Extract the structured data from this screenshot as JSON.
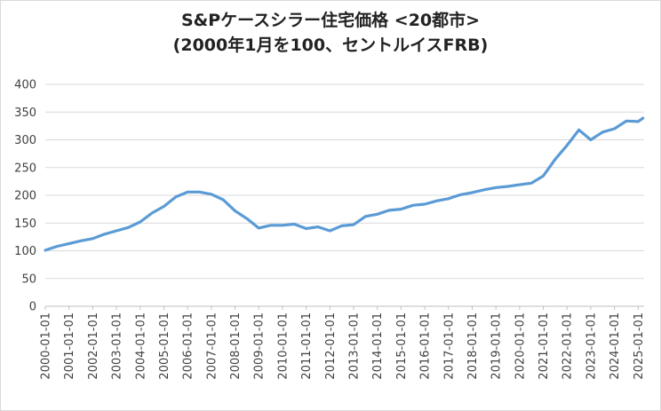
{
  "chart_data": {
    "type": "line",
    "title": "S&Pケースシラー住宅価格 <20都市>",
    "subtitle": "(2000年1月を100、セントルイスFRB)",
    "xlabel": "",
    "ylabel": "",
    "ylim": [
      0,
      400
    ],
    "yticks": [
      0,
      50,
      100,
      150,
      200,
      250,
      300,
      350,
      400
    ],
    "xticks": [
      "2000-01-01",
      "2001-01-01",
      "2002-01-01",
      "2003-01-01",
      "2004-01-01",
      "2005-01-01",
      "2006-01-01",
      "2007-01-01",
      "2008-01-01",
      "2009-01-01",
      "2010-01-01",
      "2011-01-01",
      "2012-01-01",
      "2013-01-01",
      "2014-01-01",
      "2015-01-01",
      "2016-01-01",
      "2017-01-01",
      "2018-01-01",
      "2019-01-01",
      "2020-01-01",
      "2021-01-01",
      "2022-01-01",
      "2023-01-01",
      "2024-01-01",
      "2025-01-01"
    ],
    "grid": true,
    "color": "#5b9bd5",
    "series": [
      {
        "x": [
          2000.0,
          2000.5,
          2001.0,
          2001.5,
          2002.0,
          2002.5,
          2003.0,
          2003.5,
          2004.0,
          2004.5,
          2005.0,
          2005.5,
          2006.0,
          2006.5,
          2007.0,
          2007.5,
          2008.0,
          2008.5,
          2009.0,
          2009.5,
          2010.0,
          2010.5,
          2011.0,
          2011.5,
          2012.0,
          2012.5,
          2013.0,
          2013.5,
          2014.0,
          2014.5,
          2015.0,
          2015.5,
          2016.0,
          2016.5,
          2017.0,
          2017.5,
          2018.0,
          2018.5,
          2019.0,
          2019.5,
          2020.0,
          2020.5,
          2021.0,
          2021.5,
          2022.0,
          2022.5,
          2023.0,
          2023.5,
          2024.0,
          2024.5,
          2025.0,
          2025.2
        ],
        "values": [
          101,
          108,
          113,
          118,
          122,
          130,
          136,
          142,
          152,
          168,
          180,
          197,
          206,
          206,
          202,
          192,
          172,
          158,
          141,
          146,
          146,
          148,
          140,
          143,
          136,
          145,
          147,
          162,
          166,
          173,
          175,
          182,
          184,
          190,
          194,
          201,
          205,
          210,
          214,
          216,
          219,
          222,
          235,
          265,
          290,
          318,
          300,
          314,
          320,
          334,
          333,
          339
        ]
      }
    ]
  }
}
